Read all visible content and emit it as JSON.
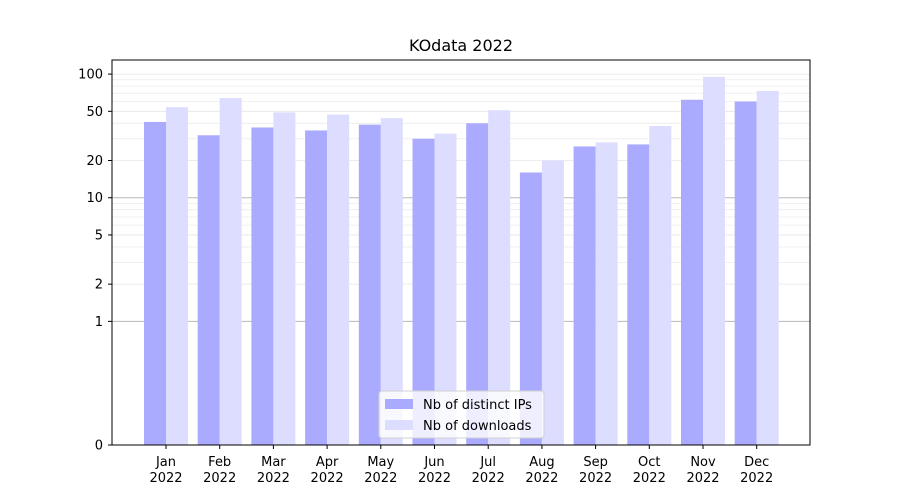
{
  "chart_data": {
    "type": "bar",
    "title": "KOdata 2022",
    "xlabel": "",
    "ylabel": "",
    "y_scale": "symlog",
    "ylim": [
      0,
      130
    ],
    "y_ticks": [
      0,
      1,
      2,
      5,
      10,
      20,
      50,
      100
    ],
    "y_tick_labels": [
      "0",
      "1",
      "2",
      "5",
      "10",
      "20",
      "50",
      "100"
    ],
    "categories": [
      [
        "Jan",
        "2022"
      ],
      [
        "Feb",
        "2022"
      ],
      [
        "Mar",
        "2022"
      ],
      [
        "Apr",
        "2022"
      ],
      [
        "May",
        "2022"
      ],
      [
        "Jun",
        "2022"
      ],
      [
        "Jul",
        "2022"
      ],
      [
        "Aug",
        "2022"
      ],
      [
        "Sep",
        "2022"
      ],
      [
        "Oct",
        "2022"
      ],
      [
        "Nov",
        "2022"
      ],
      [
        "Dec",
        "2022"
      ]
    ],
    "series": [
      {
        "name": "Nb of distinct IPs",
        "color": "#aaaaff",
        "values": [
          41,
          32,
          37,
          35,
          39,
          30,
          40,
          16,
          26,
          27,
          62,
          60
        ]
      },
      {
        "name": "Nb of downloads",
        "color": "#ddddff",
        "values": [
          54,
          64,
          49,
          47,
          44,
          33,
          51,
          20,
          28,
          38,
          95,
          73
        ]
      }
    ],
    "grid": true,
    "legend_position": "bottom-center"
  }
}
